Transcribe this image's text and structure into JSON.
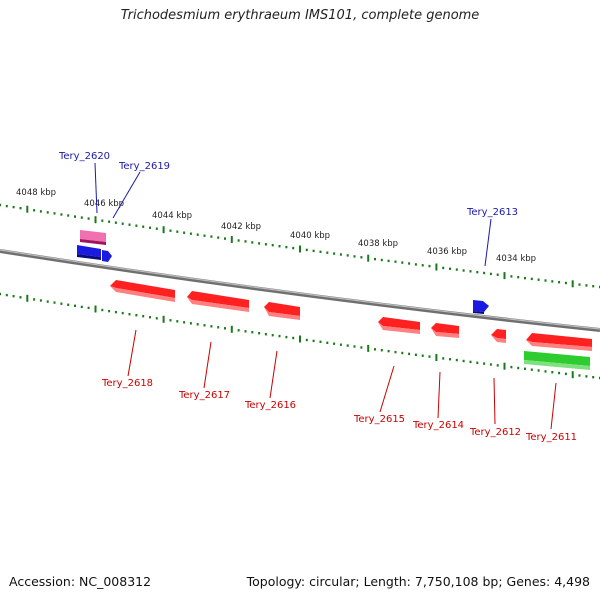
{
  "title": "Trichodesmium erythraeum IMS101, complete genome",
  "footer": {
    "accession": "Accession: NC_008312",
    "stats": "Topology: circular; Length: 7,750,108 bp; Genes: 4,498"
  },
  "colors": {
    "forward_label": "#1a1aaa",
    "reverse_label": "#cc0000",
    "forward_gene": "#1515d5",
    "reverse_gene": "#ee0000",
    "pink_feature": "#e0308a",
    "green_feature": "#22bb22",
    "axis": "#8a8a8a",
    "tick": "#1a7a1a"
  },
  "scale_labels": [
    "4048 kbp",
    "4046 kbp",
    "4044 kbp",
    "4042 kbp",
    "4040 kbp",
    "4038 kbp",
    "4036 kbp",
    "4034 kbp"
  ],
  "genes": [
    {
      "label": "Tery_2620",
      "strand": "forward"
    },
    {
      "label": "Tery_2619",
      "strand": "forward"
    },
    {
      "label": "Tery_2613",
      "strand": "forward"
    },
    {
      "label": "Tery_2618",
      "strand": "reverse"
    },
    {
      "label": "Tery_2617",
      "strand": "reverse"
    },
    {
      "label": "Tery_2616",
      "strand": "reverse"
    },
    {
      "label": "Tery_2615",
      "strand": "reverse"
    },
    {
      "label": "Tery_2614",
      "strand": "reverse"
    },
    {
      "label": "Tery_2612",
      "strand": "reverse"
    },
    {
      "label": "Tery_2611",
      "strand": "reverse"
    }
  ]
}
